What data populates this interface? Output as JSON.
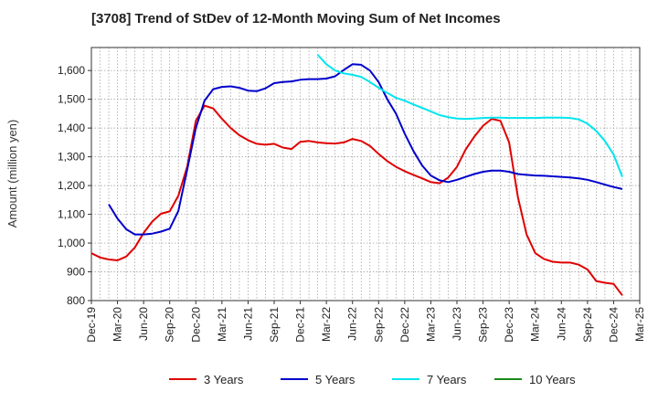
{
  "chart_data": {
    "type": "line",
    "title": "[3708]  Trend of StDev of 12-Month Moving Sum of Net Incomes",
    "ylabel": "Amount (million yen)",
    "xlabel": "",
    "ylim": [
      800,
      1680
    ],
    "yticks": [
      800,
      900,
      1000,
      1100,
      1200,
      1300,
      1400,
      1500,
      1600
    ],
    "ytick_labels": [
      "800",
      "900",
      "1,000",
      "1,100",
      "1,200",
      "1,300",
      "1,400",
      "1,500",
      "1,600"
    ],
    "xlim": [
      "2019-12",
      "2025-03"
    ],
    "xticks": [
      "Dec-19",
      "Mar-20",
      "Jun-20",
      "Sep-20",
      "Dec-20",
      "Mar-21",
      "Jun-21",
      "Sep-21",
      "Dec-21",
      "Mar-22",
      "Jun-22",
      "Sep-22",
      "Dec-22",
      "Mar-23",
      "Jun-23",
      "Sep-23",
      "Dec-23",
      "Mar-24",
      "Jun-24",
      "Sep-24",
      "Dec-24",
      "Mar-25"
    ],
    "grid": true,
    "legend_position": "bottom",
    "series": [
      {
        "name": "3 Years",
        "color": "#e00000",
        "points": [
          [
            "2019-12",
            965
          ],
          [
            "2020-01",
            950
          ],
          [
            "2020-02",
            943
          ],
          [
            "2020-03",
            940
          ],
          [
            "2020-04",
            953
          ],
          [
            "2020-05",
            985
          ],
          [
            "2020-06",
            1035
          ],
          [
            "2020-07",
            1075
          ],
          [
            "2020-08",
            1102
          ],
          [
            "2020-09",
            1110
          ],
          [
            "2020-10",
            1165
          ],
          [
            "2020-11",
            1265
          ],
          [
            "2020-12",
            1425
          ],
          [
            "2021-01",
            1478
          ],
          [
            "2021-02",
            1468
          ],
          [
            "2021-03",
            1432
          ],
          [
            "2021-04",
            1400
          ],
          [
            "2021-05",
            1375
          ],
          [
            "2021-06",
            1358
          ],
          [
            "2021-07",
            1345
          ],
          [
            "2021-08",
            1342
          ],
          [
            "2021-09",
            1345
          ],
          [
            "2021-10",
            1332
          ],
          [
            "2021-11",
            1327
          ],
          [
            "2021-12",
            1352
          ],
          [
            "2022-01",
            1355
          ],
          [
            "2022-02",
            1350
          ],
          [
            "2022-03",
            1347
          ],
          [
            "2022-04",
            1346
          ],
          [
            "2022-05",
            1350
          ],
          [
            "2022-06",
            1362
          ],
          [
            "2022-07",
            1355
          ],
          [
            "2022-08",
            1338
          ],
          [
            "2022-09",
            1310
          ],
          [
            "2022-10",
            1285
          ],
          [
            "2022-11",
            1265
          ],
          [
            "2022-12",
            1250
          ],
          [
            "2023-01",
            1237
          ],
          [
            "2023-02",
            1225
          ],
          [
            "2023-03",
            1212
          ],
          [
            "2023-04",
            1208
          ],
          [
            "2023-05",
            1228
          ],
          [
            "2023-06",
            1265
          ],
          [
            "2023-07",
            1325
          ],
          [
            "2023-08",
            1370
          ],
          [
            "2023-09",
            1408
          ],
          [
            "2023-10",
            1432
          ],
          [
            "2023-11",
            1425
          ],
          [
            "2023-12",
            1350
          ],
          [
            "2024-01",
            1160
          ],
          [
            "2024-02",
            1030
          ],
          [
            "2024-03",
            965
          ],
          [
            "2024-04",
            945
          ],
          [
            "2024-05",
            935
          ],
          [
            "2024-06",
            932
          ],
          [
            "2024-07",
            932
          ],
          [
            "2024-08",
            925
          ],
          [
            "2024-09",
            908
          ],
          [
            "2024-10",
            868
          ],
          [
            "2024-11",
            862
          ],
          [
            "2024-12",
            858
          ],
          [
            "2025-01",
            818
          ]
        ]
      },
      {
        "name": "5 Years",
        "color": "#0000cc",
        "points": [
          [
            "2020-02",
            1135
          ],
          [
            "2020-03",
            1085
          ],
          [
            "2020-04",
            1048
          ],
          [
            "2020-05",
            1030
          ],
          [
            "2020-06",
            1030
          ],
          [
            "2020-07",
            1033
          ],
          [
            "2020-08",
            1040
          ],
          [
            "2020-09",
            1050
          ],
          [
            "2020-10",
            1112
          ],
          [
            "2020-11",
            1255
          ],
          [
            "2020-12",
            1400
          ],
          [
            "2021-01",
            1495
          ],
          [
            "2021-02",
            1535
          ],
          [
            "2021-03",
            1543
          ],
          [
            "2021-04",
            1545
          ],
          [
            "2021-05",
            1540
          ],
          [
            "2021-06",
            1530
          ],
          [
            "2021-07",
            1528
          ],
          [
            "2021-08",
            1538
          ],
          [
            "2021-09",
            1556
          ],
          [
            "2021-10",
            1560
          ],
          [
            "2021-11",
            1562
          ],
          [
            "2021-12",
            1568
          ],
          [
            "2022-01",
            1570
          ],
          [
            "2022-02",
            1570
          ],
          [
            "2022-03",
            1572
          ],
          [
            "2022-04",
            1580
          ],
          [
            "2022-05",
            1602
          ],
          [
            "2022-06",
            1622
          ],
          [
            "2022-07",
            1620
          ],
          [
            "2022-08",
            1600
          ],
          [
            "2022-09",
            1560
          ],
          [
            "2022-10",
            1500
          ],
          [
            "2022-11",
            1450
          ],
          [
            "2022-12",
            1380
          ],
          [
            "2023-01",
            1320
          ],
          [
            "2023-02",
            1270
          ],
          [
            "2023-03",
            1235
          ],
          [
            "2023-04",
            1218
          ],
          [
            "2023-05",
            1212
          ],
          [
            "2023-06",
            1220
          ],
          [
            "2023-07",
            1230
          ],
          [
            "2023-08",
            1240
          ],
          [
            "2023-09",
            1248
          ],
          [
            "2023-10",
            1252
          ],
          [
            "2023-11",
            1252
          ],
          [
            "2023-12",
            1248
          ],
          [
            "2024-01",
            1240
          ],
          [
            "2024-02",
            1237
          ],
          [
            "2024-03",
            1235
          ],
          [
            "2024-04",
            1234
          ],
          [
            "2024-05",
            1232
          ],
          [
            "2024-06",
            1230
          ],
          [
            "2024-07",
            1228
          ],
          [
            "2024-08",
            1225
          ],
          [
            "2024-09",
            1220
          ],
          [
            "2024-10",
            1212
          ],
          [
            "2024-11",
            1203
          ],
          [
            "2024-12",
            1195
          ],
          [
            "2025-01",
            1188
          ]
        ]
      },
      {
        "name": "7 Years",
        "color": "#00e5ee",
        "points": [
          [
            "2022-02",
            1655
          ],
          [
            "2022-03",
            1622
          ],
          [
            "2022-04",
            1600
          ],
          [
            "2022-05",
            1590
          ],
          [
            "2022-06",
            1585
          ],
          [
            "2022-07",
            1578
          ],
          [
            "2022-08",
            1560
          ],
          [
            "2022-09",
            1540
          ],
          [
            "2022-10",
            1522
          ],
          [
            "2022-11",
            1505
          ],
          [
            "2022-12",
            1495
          ],
          [
            "2023-01",
            1482
          ],
          [
            "2023-02",
            1470
          ],
          [
            "2023-03",
            1458
          ],
          [
            "2023-04",
            1445
          ],
          [
            "2023-05",
            1438
          ],
          [
            "2023-06",
            1433
          ],
          [
            "2023-07",
            1432
          ],
          [
            "2023-08",
            1433
          ],
          [
            "2023-09",
            1435
          ],
          [
            "2023-10",
            1436
          ],
          [
            "2023-11",
            1436
          ],
          [
            "2023-12",
            1435
          ],
          [
            "2024-01",
            1435
          ],
          [
            "2024-02",
            1435
          ],
          [
            "2024-03",
            1435
          ],
          [
            "2024-04",
            1436
          ],
          [
            "2024-05",
            1436
          ],
          [
            "2024-06",
            1436
          ],
          [
            "2024-07",
            1435
          ],
          [
            "2024-08",
            1430
          ],
          [
            "2024-09",
            1415
          ],
          [
            "2024-10",
            1390
          ],
          [
            "2024-11",
            1355
          ],
          [
            "2024-12",
            1308
          ],
          [
            "2025-01",
            1230
          ]
        ]
      },
      {
        "name": "10 Years",
        "color": "#1a8a1a",
        "points": []
      }
    ]
  }
}
